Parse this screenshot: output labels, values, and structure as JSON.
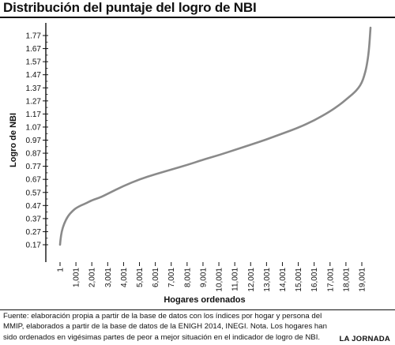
{
  "header": {
    "title": "Distribución del puntaje del logro de NBI"
  },
  "chart_data": {
    "type": "line",
    "title": "Distribución del puntaje del logro de NBI",
    "xlabel": "Hogares ordenados",
    "ylabel": "Logro de NBI",
    "x_ticks": [
      "1",
      "1,001",
      "2,001",
      "3,001",
      "4,001",
      "5,001",
      "6,001",
      "7,001",
      "8,001",
      "9,001",
      "10,001",
      "11,001",
      "12,001",
      "13,001",
      "14,001",
      "15,001",
      "16,001",
      "17,001",
      "18,001",
      "19,001"
    ],
    "x_tick_values": [
      1,
      1001,
      2001,
      3001,
      4001,
      5001,
      6001,
      7001,
      8001,
      9001,
      10001,
      11001,
      12001,
      13001,
      14001,
      15001,
      16001,
      17001,
      18001,
      19001
    ],
    "y_ticks": [
      "0.17",
      "0.27",
      "0.37",
      "0.47",
      "0.57",
      "0.67",
      "0.77",
      "0.87",
      "0.97",
      "1.07",
      "1.17",
      "1.27",
      "1.37",
      "1.47",
      "1.57",
      "1.67",
      "1.77"
    ],
    "y_tick_values": [
      0.17,
      0.27,
      0.37,
      0.47,
      0.57,
      0.67,
      0.77,
      0.87,
      0.97,
      1.07,
      1.17,
      1.27,
      1.37,
      1.47,
      1.57,
      1.67,
      1.77
    ],
    "xlim": [
      1,
      19001
    ],
    "ylim": [
      0.17,
      1.77
    ],
    "grid": false,
    "legend": "none",
    "line_color": "#8a8a8a",
    "series": [
      {
        "x": [
          1,
          30,
          100,
          250,
          500,
          800,
          1001,
          1300,
          1700,
          2001,
          2500,
          3001,
          4001,
          5001,
          6001,
          7001,
          8001,
          9001,
          10001,
          11001,
          12001,
          13001,
          14001,
          15001,
          16001,
          17001,
          17600,
          18001,
          18500,
          18800,
          19001,
          19150,
          19300,
          19450,
          19550
        ],
        "y": [
          0.17,
          0.21,
          0.27,
          0.33,
          0.39,
          0.43,
          0.45,
          0.47,
          0.49,
          0.51,
          0.53,
          0.56,
          0.62,
          0.67,
          0.71,
          0.745,
          0.78,
          0.82,
          0.855,
          0.895,
          0.935,
          0.975,
          1.02,
          1.065,
          1.12,
          1.19,
          1.24,
          1.28,
          1.33,
          1.37,
          1.41,
          1.46,
          1.53,
          1.65,
          1.83
        ]
      }
    ]
  },
  "footer": {
    "source": "Fuente: elaboración propia a partir de la base de datos con los índices por hogar y persona del MMIP, elaborados a partir de la base de datos de la ENIGH 2014, INEGI. Nota. Los hogares han sido ordenados en vigésimas partes de peor a mejor situación en el indicador de logro de NBI.",
    "brand": "LA JORNADA"
  }
}
